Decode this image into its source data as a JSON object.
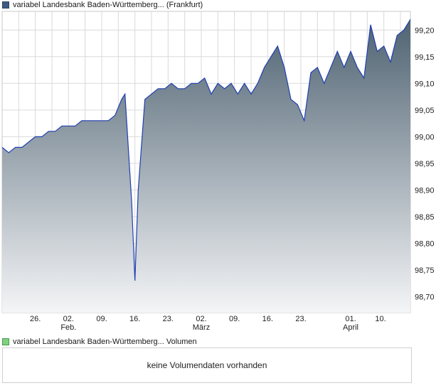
{
  "legend": {
    "price_label": "variabel Landesbank Baden-Württemberg... (Frankfurt)",
    "volume_label": "variabel Landesbank Baden-Württemberg... Volumen"
  },
  "volume_panel": {
    "message": "keine Volumendaten vorhanden"
  },
  "colors": {
    "line": "#1f3fb0",
    "area_top": "#4f6372",
    "area_bottom": "#f4f5f7",
    "grid": "#d9d9d9",
    "price_swatch": "#3d5a80",
    "volume_swatch": "#7fd07f"
  },
  "chart_data": {
    "type": "area",
    "ylim": [
      98.67,
      99.235
    ],
    "yticks": [
      "98,70",
      "98,75",
      "98,80",
      "98,85",
      "98,90",
      "98,95",
      "99,00",
      "99,05",
      "99,10",
      "99,15",
      "99,20"
    ],
    "ytick_values": [
      98.7,
      98.75,
      98.8,
      98.85,
      98.9,
      98.95,
      99.0,
      99.05,
      99.1,
      99.15,
      99.2
    ],
    "xlim": [
      0,
      123
    ],
    "xticks": [
      {
        "label": "26.",
        "x": 10
      },
      {
        "label": "02.",
        "x": 20
      },
      {
        "label": "09.",
        "x": 30
      },
      {
        "label": "16.",
        "x": 40
      },
      {
        "label": "23.",
        "x": 50
      },
      {
        "label": "02.",
        "x": 60
      },
      {
        "label": "09.",
        "x": 70
      },
      {
        "label": "16.",
        "x": 80
      },
      {
        "label": "23.",
        "x": 90
      },
      {
        "label": "01.",
        "x": 105
      },
      {
        "label": "10.",
        "x": 114
      }
    ],
    "month_labels": [
      {
        "label": "Feb.",
        "x": 20
      },
      {
        "label": "März",
        "x": 60
      },
      {
        "label": "April",
        "x": 105
      }
    ],
    "series": [
      {
        "x": [
          0,
          2,
          4,
          6,
          8,
          10,
          12,
          14,
          16,
          18,
          20,
          22,
          24,
          26,
          28,
          30,
          32,
          34,
          36,
          37,
          39,
          40,
          41,
          43,
          45,
          47,
          49,
          51,
          53,
          55,
          57,
          59,
          61,
          63,
          65,
          67,
          69,
          71,
          73,
          75,
          77,
          79,
          81,
          83,
          85,
          87,
          89,
          91,
          93,
          95,
          97,
          99,
          101,
          103,
          105,
          107,
          109,
          111,
          113,
          115,
          117,
          119,
          121,
          123
        ],
        "y": [
          98.98,
          98.97,
          98.98,
          98.98,
          98.99,
          99.0,
          99.0,
          99.01,
          99.01,
          99.02,
          99.02,
          99.02,
          99.03,
          99.03,
          99.03,
          99.03,
          99.03,
          99.04,
          99.07,
          99.08,
          98.88,
          98.73,
          98.9,
          99.07,
          99.08,
          99.09,
          99.09,
          99.1,
          99.09,
          99.09,
          99.1,
          99.1,
          99.11,
          99.08,
          99.1,
          99.09,
          99.1,
          99.08,
          99.1,
          99.08,
          99.1,
          99.13,
          99.15,
          99.17,
          99.13,
          99.07,
          99.06,
          99.03,
          99.12,
          99.13,
          99.1,
          99.13,
          99.16,
          99.13,
          99.16,
          99.13,
          99.11,
          99.21,
          99.16,
          99.17,
          99.14,
          99.19,
          99.2,
          99.22
        ]
      }
    ],
    "grid": true
  }
}
